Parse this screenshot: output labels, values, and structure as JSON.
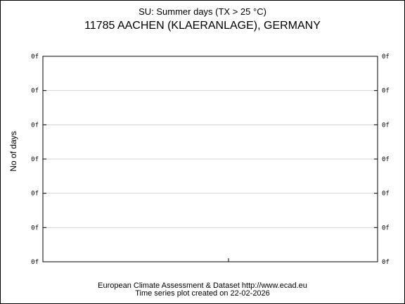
{
  "header": {
    "subtitle": "SU: Summer days (TX > 25 °C)",
    "title": "11785 AACHEN (KLAERANLAGE), GERMANY"
  },
  "footer": {
    "credit": "European Climate Assessment & Dataset  http://www.ecad.eu",
    "created": "Time series plot created on 22-02-2026"
  },
  "colors": {
    "gridline": "#d3d3d3",
    "axis": "#000000",
    "background": "#ffffff"
  },
  "chart_data": {
    "type": "line",
    "title": "11785 AACHEN (KLAERANLAGE), GERMANY",
    "subtitle": "SU: Summer days (TX > 25 °C)",
    "ylabel": "No of days",
    "xlabel": "",
    "y_tick_labels": [
      "0f",
      "0f",
      "0f",
      "0f",
      "0f",
      "0f",
      "0f"
    ],
    "y_tick_labels_right": [
      "0f",
      "0f",
      "0f",
      "0f",
      "0f",
      "0f",
      "0f"
    ],
    "x_tick_labels": [],
    "series": [],
    "grid": true,
    "legend": "none"
  }
}
